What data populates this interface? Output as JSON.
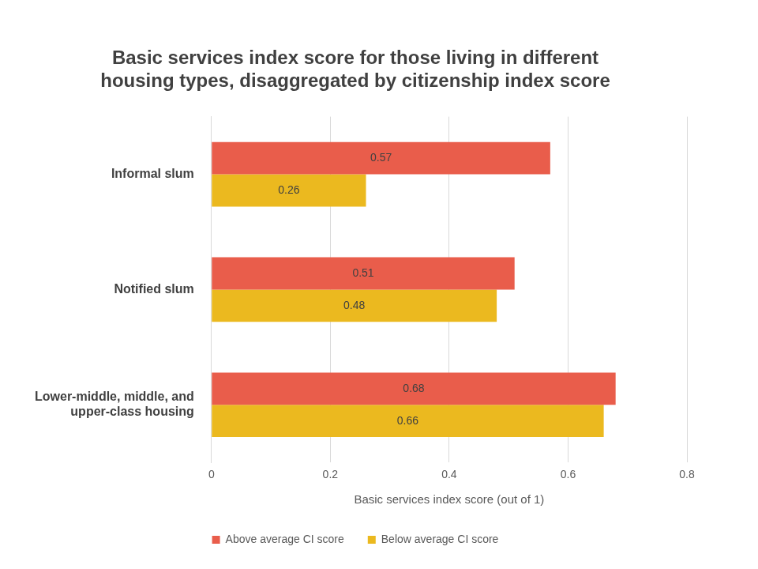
{
  "chart_data": {
    "type": "bar",
    "orientation": "horizontal",
    "title": "Basic services index score for those living in different housing types, disaggregated by citizenship index score",
    "x_label": "Basic services index score (out of 1)",
    "categories": [
      "Informal slum",
      "Notified slum",
      "Lower-middle, middle, and upper-class housing"
    ],
    "series": [
      {
        "name": "Above average CI score",
        "color": "#E95D4B",
        "values": [
          0.57,
          0.51,
          0.68
        ]
      },
      {
        "name": "Below average CI score",
        "color": "#EBB91F",
        "values": [
          0.26,
          0.48,
          0.66
        ]
      }
    ],
    "xlim": [
      0,
      0.8
    ],
    "xticks": [
      0,
      0.2,
      0.4,
      0.6,
      0.8
    ],
    "grid": true,
    "legend": "bottom",
    "data_labels": true
  }
}
